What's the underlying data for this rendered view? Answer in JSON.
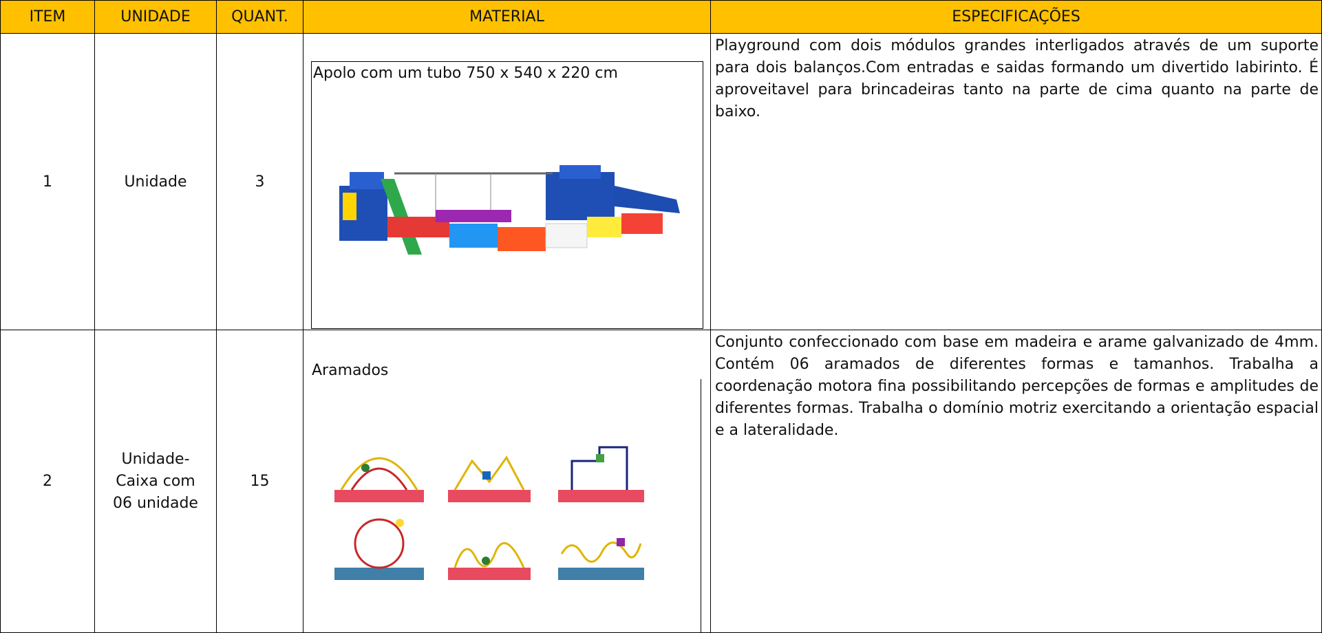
{
  "table": {
    "headers": [
      "ITEM",
      "UNIDADE",
      "QUANT.",
      "MATERIAL",
      "ESPECIFICAÇÕES"
    ],
    "rows": [
      {
        "item": "1",
        "unit": "Unidade",
        "quantity": "3",
        "material": "Apolo com um tubo 750 x 540 x 220 cm",
        "specification": "Playground com dois módulos grandes interligados através de um suporte para dois balanços.Com entradas e saidas formando um divertido labirinto. É aproveitavel para brincadeiras tanto na parte de cima quanto na parte de baixo."
      },
      {
        "item": "2",
        "unit": "Unidade-Caixa com 06 unidade",
        "quantity": "15",
        "material": "Aramados",
        "specification": "Conjunto confeccionado  com base em madeira e arame galvanizado de 4mm. Contém 06 aramados de diferentes formas e tamanhos. Trabalha a coordenação motora fina possibilitando percepções de formas e amplitudes de diferentes formas. Trabalha o domínio motriz exercitando a orientação espacial e a lateralidade."
      }
    ]
  }
}
